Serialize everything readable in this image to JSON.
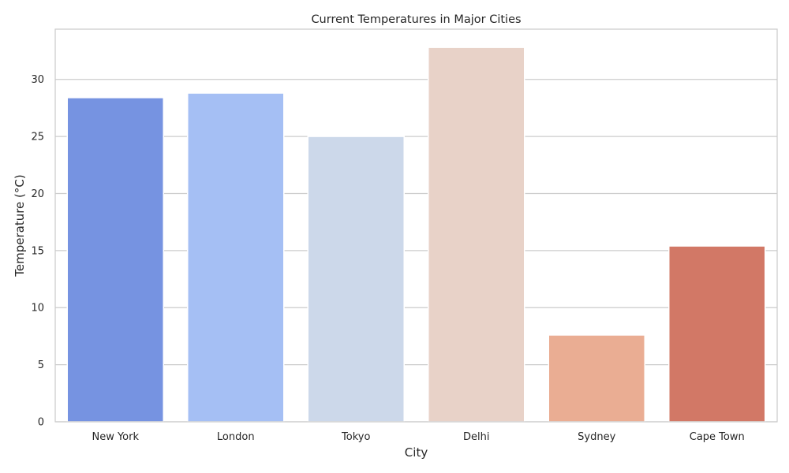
{
  "chart_data": {
    "type": "bar",
    "title": "Current Temperatures in Major Cities",
    "xlabel": "City",
    "ylabel": "Temperature (°C)",
    "categories": [
      "New York",
      "London",
      "Tokyo",
      "Delhi",
      "Sydney",
      "Cape Town"
    ],
    "values": [
      28.4,
      28.8,
      25.0,
      32.8,
      7.6,
      15.4
    ],
    "colors": [
      "#7693e1",
      "#a5bff4",
      "#ccd8ea",
      "#e8d2c8",
      "#eaad93",
      "#d27866"
    ],
    "ylim": [
      0,
      34.4
    ],
    "yticks": [
      0,
      5,
      10,
      15,
      20,
      25,
      30
    ],
    "grid": true,
    "legend": "none"
  }
}
